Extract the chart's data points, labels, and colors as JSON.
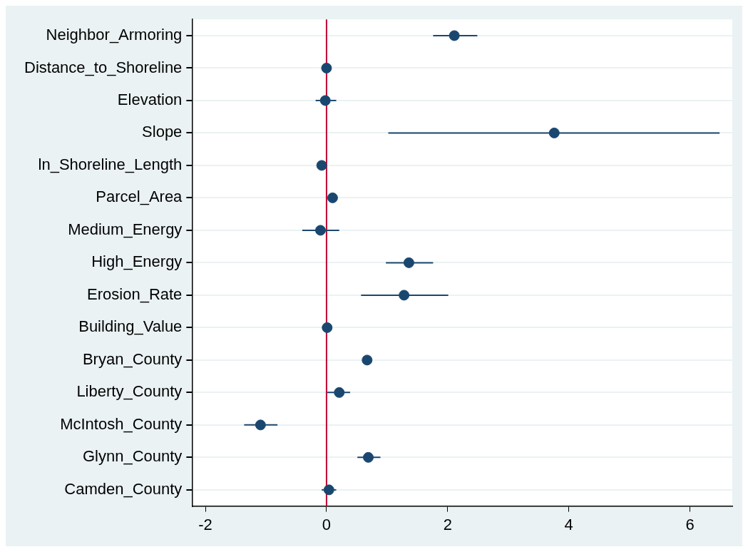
{
  "chart_data": {
    "type": "scatter",
    "categories": [
      "Neighbor_Armoring",
      "Distance_to_Shoreline",
      "Elevation",
      "Slope",
      "ln_Shoreline_Length",
      "Parcel_Area",
      "Medium_Energy",
      "High_Energy",
      "Erosion_Rate",
      "Building_Value",
      "Bryan_County",
      "Liberty_County",
      "McIntosh_County",
      "Glynn_County",
      "Camden_County"
    ],
    "orientation": "horizontal",
    "values": [
      2.11,
      0.0,
      -0.02,
      3.76,
      -0.08,
      0.1,
      -0.1,
      1.36,
      1.28,
      0.01,
      0.67,
      0.21,
      -1.09,
      0.69,
      0.04
    ],
    "errors": [
      [
        1.76,
        2.49
      ],
      null,
      [
        -0.18,
        0.16
      ],
      [
        1.02,
        6.49
      ],
      null,
      null,
      [
        -0.4,
        0.21
      ],
      [
        0.98,
        1.76
      ],
      [
        0.57,
        2.01
      ],
      null,
      null,
      [
        0.01,
        0.39
      ],
      [
        -1.36,
        -0.81
      ],
      [
        0.51,
        0.89
      ],
      [
        -0.08,
        0.16
      ]
    ],
    "color": "#1a476f",
    "marker": "circle",
    "xlim": [
      -2.22,
      6.7
    ],
    "xticks": [
      -2,
      0,
      2,
      4,
      6
    ],
    "grid": "y",
    "ref_lines": [
      {
        "axis": "x",
        "value": 0,
        "color": "#c10534"
      }
    ]
  }
}
